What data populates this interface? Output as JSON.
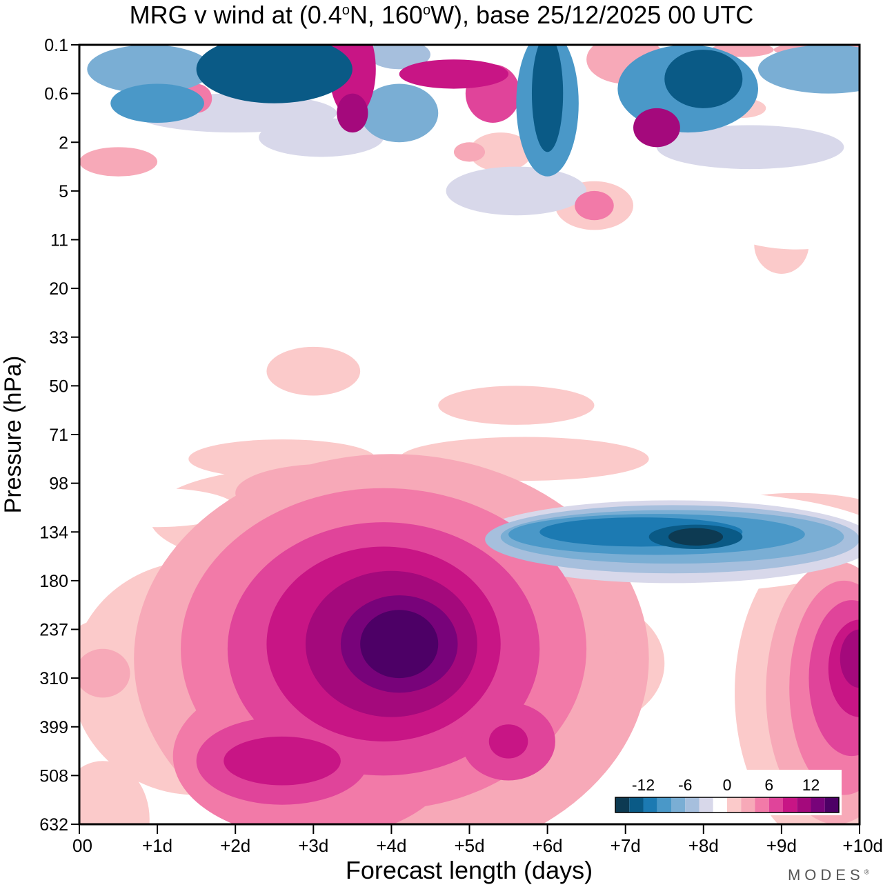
{
  "title": {
    "prefix": "MRG v wind at (0.4",
    "deg": "o",
    "mid": "N, 160",
    "deg2": "o",
    "suffix": "W),  base 25/12/2025  00 UTC"
  },
  "watermark": {
    "text": "MODES",
    "mark": "®"
  },
  "chart_data": {
    "type": "heatmap",
    "title": "MRG v wind at (0.4°N, 160°W),  base 25/12/2025  00 UTC",
    "xlabel": "Forecast length (days)",
    "ylabel": "Pressure (hPa)",
    "x_ticks": [
      "00",
      "+1d",
      "+2d",
      "+3d",
      "+4d",
      "+5d",
      "+6d",
      "+7d",
      "+8d",
      "+9d",
      "+10d"
    ],
    "x_range_days": [
      0,
      10
    ],
    "y_ticks": [
      "0.1",
      "0.6",
      "2",
      "5",
      "11",
      "20",
      "33",
      "50",
      "71",
      "98",
      "134",
      "180",
      "237",
      "310",
      "399",
      "508",
      "632"
    ],
    "y_axis": "pressure levels, top 0.1 hPa to bottom 632 hPa (log-like spacing)",
    "colorbar": {
      "tick_labels": [
        "-12",
        "-6",
        "0",
        "6",
        "12"
      ],
      "levels": [
        -16,
        -14,
        -12,
        -10,
        -8,
        -6,
        -4,
        -2,
        2,
        4,
        6,
        8,
        10,
        12,
        14,
        16
      ],
      "colors": [
        "#0d3a52",
        "#0a5a86",
        "#1c7ab2",
        "#4a98c8",
        "#7aaed4",
        "#a6bfdd",
        "#d8d8ea",
        "#ffffff",
        "#fbcaca",
        "#f7a9b8",
        "#f27aa8",
        "#e0449a",
        "#c81585",
        "#a4097c",
        "#78037a",
        "#4d0066"
      ]
    },
    "features": [
      {
        "name": "positive max (upper troposphere)",
        "day_range": [
          3.5,
          4.7
        ],
        "pressure_hPa": 237,
        "approx_value": 16
      },
      {
        "name": "negative min (upper troposphere)",
        "day_range": [
          7.3,
          8.1
        ],
        "pressure_hPa": 134,
        "approx_value": -16
      },
      {
        "name": "positive region right edge",
        "day_range": [
          8.5,
          10
        ],
        "pressure_hPa": 260,
        "approx_value": 14
      },
      {
        "name": "positive region lower",
        "day_range": [
          2.3,
          3.5
        ],
        "pressure_hPa": 399,
        "approx_value": 10
      }
    ]
  }
}
